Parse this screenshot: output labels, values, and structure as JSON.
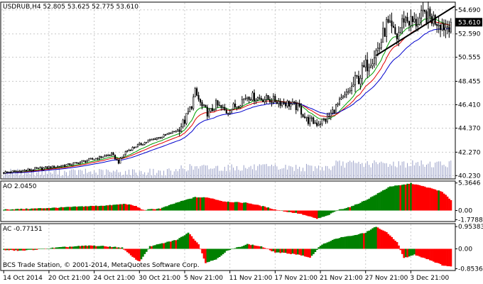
{
  "chart_data": {
    "type": "candlestick",
    "panels": [
      {
        "name": "price",
        "header": "USDRUB,H4  52.805 53.625 52.775 53.610",
        "y_ticks": [
          "54.690",
          "52.590",
          "50.555",
          "48.455",
          "46.410",
          "44.370",
          "42.270",
          "40.230"
        ],
        "y_tick_values": [
          54.69,
          52.59,
          50.555,
          48.455,
          46.41,
          44.37,
          42.27,
          40.23
        ],
        "ylim": [
          40.0,
          55.3
        ],
        "current_price": 53.61,
        "current_price_label": "53.610",
        "close_path": [
          [
            0,
            40.5
          ],
          [
            8,
            40.6
          ],
          [
            16,
            40.75
          ],
          [
            24,
            40.9
          ],
          [
            32,
            41.05
          ],
          [
            40,
            41.25
          ],
          [
            48,
            41.55
          ],
          [
            56,
            41.85
          ],
          [
            62,
            42.1
          ],
          [
            66,
            41.4
          ],
          [
            70,
            42.3
          ],
          [
            76,
            42.8
          ],
          [
            84,
            43.3
          ],
          [
            92,
            43.7
          ],
          [
            100,
            44.2
          ],
          [
            104,
            45.0
          ],
          [
            108,
            46.4
          ],
          [
            110,
            47.5
          ],
          [
            114,
            46.2
          ],
          [
            118,
            45.6
          ],
          [
            122,
            46.4
          ],
          [
            128,
            45.8
          ],
          [
            134,
            46.4
          ],
          [
            140,
            47.2
          ],
          [
            146,
            47.0
          ],
          [
            152,
            46.9
          ],
          [
            158,
            46.7
          ],
          [
            164,
            46.5
          ],
          [
            170,
            46.1
          ],
          [
            174,
            45.1
          ],
          [
            180,
            44.8
          ],
          [
            186,
            45.2
          ],
          [
            192,
            46.4
          ],
          [
            198,
            47.5
          ],
          [
            204,
            48.8
          ],
          [
            210,
            50.2
          ],
          [
            216,
            51.5
          ],
          [
            220,
            53.4
          ],
          [
            226,
            52.3
          ],
          [
            230,
            54.0
          ],
          [
            236,
            53.5
          ],
          [
            242,
            54.2
          ],
          [
            250,
            53.7
          ],
          [
            254,
            53.2
          ],
          [
            257,
            53.61
          ]
        ],
        "moving_averages": [
          {
            "color": "#00a000",
            "period": 13
          },
          {
            "color": "#e00000",
            "period": 21
          },
          {
            "color": "#0000cc",
            "period": 34
          }
        ],
        "volume_max": 1.0,
        "trendline": {
          "from": [
            214,
            50.7
          ],
          "to": [
            262,
            55.0
          ],
          "color": "#000000"
        }
      },
      {
        "name": "AO",
        "header": "AO 2.0450",
        "y_ticks": [
          "5.3646",
          "0.00",
          "-1.7788"
        ],
        "y_tick_values": [
          5.3646,
          0.0,
          -1.7788
        ],
        "ylim": [
          -2.0,
          5.6
        ],
        "up_color": "#008000",
        "down_color": "#ff0000",
        "value_path": [
          [
            0,
            0.2
          ],
          [
            15,
            0.35
          ],
          [
            30,
            0.55
          ],
          [
            45,
            0.8
          ],
          [
            60,
            1.0
          ],
          [
            70,
            1.3
          ],
          [
            76,
            0.85
          ],
          [
            80,
            0.1
          ],
          [
            90,
            0.4
          ],
          [
            100,
            1.6
          ],
          [
            110,
            2.6
          ],
          [
            118,
            2.5
          ],
          [
            126,
            1.8
          ],
          [
            134,
            1.6
          ],
          [
            140,
            1.5
          ],
          [
            148,
            0.9
          ],
          [
            156,
            0.2
          ],
          [
            162,
            -0.2
          ],
          [
            170,
            -0.6
          ],
          [
            176,
            -1.2
          ],
          [
            180,
            -1.6
          ],
          [
            186,
            -1.0
          ],
          [
            192,
            0.1
          ],
          [
            200,
            0.8
          ],
          [
            208,
            2.0
          ],
          [
            216,
            3.5
          ],
          [
            222,
            4.7
          ],
          [
            228,
            4.9
          ],
          [
            234,
            5.3
          ],
          [
            240,
            4.8
          ],
          [
            248,
            4.1
          ],
          [
            252,
            3.6
          ],
          [
            257,
            2.05
          ]
        ]
      },
      {
        "name": "AC",
        "header": "AC -0.77151",
        "y_ticks": [
          "0.95383",
          "0.00",
          "-0.85367"
        ],
        "y_tick_values": [
          0.95383,
          0.0,
          -0.85367
        ],
        "ylim": [
          -0.9,
          1.05
        ],
        "up_color": "#008000",
        "down_color": "#ff0000",
        "value_path": [
          [
            0,
            -0.05
          ],
          [
            10,
            -0.08
          ],
          [
            20,
            -0.02
          ],
          [
            30,
            0.05
          ],
          [
            40,
            0.1
          ],
          [
            50,
            0.14
          ],
          [
            60,
            0.1
          ],
          [
            68,
            0.05
          ],
          [
            74,
            -0.35
          ],
          [
            78,
            -0.55
          ],
          [
            84,
            0.1
          ],
          [
            92,
            0.25
          ],
          [
            100,
            0.4
          ],
          [
            106,
            0.7
          ],
          [
            112,
            0.2
          ],
          [
            116,
            -0.6
          ],
          [
            122,
            -0.45
          ],
          [
            128,
            -0.1
          ],
          [
            134,
            0.05
          ],
          [
            140,
            0.2
          ],
          [
            148,
            0.1
          ],
          [
            156,
            -0.15
          ],
          [
            164,
            -0.2
          ],
          [
            170,
            -0.25
          ],
          [
            176,
            -0.4
          ],
          [
            182,
            0.15
          ],
          [
            188,
            0.35
          ],
          [
            194,
            0.5
          ],
          [
            200,
            0.55
          ],
          [
            208,
            0.7
          ],
          [
            214,
            0.95
          ],
          [
            220,
            0.7
          ],
          [
            226,
            0.3
          ],
          [
            230,
            -0.4
          ],
          [
            236,
            -0.25
          ],
          [
            244,
            -0.45
          ],
          [
            252,
            -0.7
          ],
          [
            257,
            -0.77
          ]
        ]
      }
    ],
    "x_tick_labels": [
      "14 Oct 2014",
      "20 Oct 21:00",
      "24 Oct 21:00",
      "30 Oct 21:00",
      "5 Nov 21:00",
      "11 Nov 21:00",
      "17 Nov 21:00",
      "21 Nov 21:00",
      "27 Nov 21:00",
      "3 Dec 21:00"
    ],
    "x_tick_bars": [
      0,
      26,
      52,
      78,
      104,
      130,
      156,
      182,
      208,
      234
    ],
    "bar_count": 258
  },
  "footer": {
    "copyright": "BCS Trade Station, © 2001-2014, MetaQuotes Software Corp."
  }
}
